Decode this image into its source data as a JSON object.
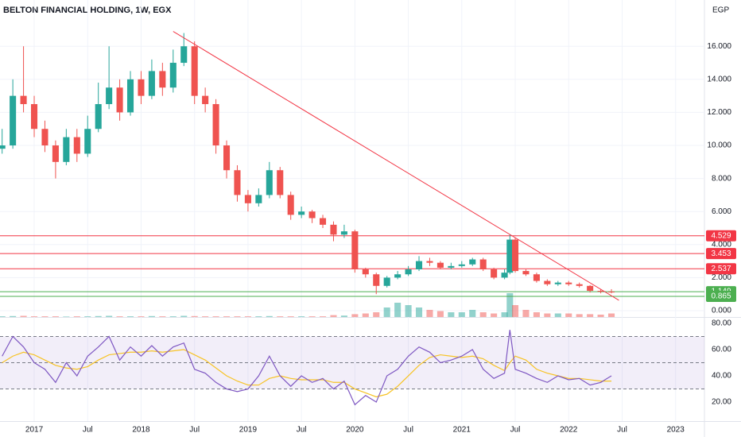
{
  "chart_data": {
    "type": "candlestick",
    "title": "BELTON FINANCIAL HOLDING, 1W, EGX",
    "y_unit": "EGP",
    "x": [
      2016.7,
      2016.8,
      2016.9,
      2017.0,
      2017.1,
      2017.2,
      2017.3,
      2017.4,
      2017.5,
      2017.6,
      2017.7,
      2017.8,
      2017.9,
      2018.0,
      2018.1,
      2018.2,
      2018.3,
      2018.4,
      2018.5,
      2018.6,
      2018.7,
      2018.8,
      2018.9,
      2019.0,
      2019.1,
      2019.2,
      2019.3,
      2019.4,
      2019.5,
      2019.6,
      2019.7,
      2019.8,
      2019.9,
      2020.0,
      2020.1,
      2020.2,
      2020.3,
      2020.4,
      2020.5,
      2020.6,
      2020.7,
      2020.8,
      2020.9,
      2021.0,
      2021.1,
      2021.2,
      2021.3,
      2021.4,
      2021.45,
      2021.5,
      2021.6,
      2021.7,
      2021.8,
      2021.9,
      2022.0,
      2022.1,
      2022.2,
      2022.3,
      2022.4
    ],
    "open": [
      9.8,
      10,
      13,
      12.5,
      11,
      10,
      9,
      10.5,
      9.5,
      11,
      12.5,
      13.5,
      12,
      14,
      13,
      14.5,
      13.5,
      15,
      16,
      13,
      12.5,
      10,
      8.5,
      7,
      6.5,
      7,
      8.5,
      7,
      5.8,
      6,
      5.6,
      5.2,
      4.6,
      4.8,
      2.5,
      2.2,
      1.5,
      2,
      2.2,
      2.5,
      3,
      2.9,
      2.6,
      2.7,
      2.8,
      3.1,
      2.5,
      2,
      2.3,
      4.3,
      2.4,
      2.2,
      1.8,
      1.6,
      1.7,
      1.6,
      1.5,
      1.2,
      1.15
    ],
    "high": [
      11,
      14,
      16,
      13,
      11.5,
      10.3,
      11,
      11,
      11.8,
      13.8,
      16,
      14,
      14.5,
      14.5,
      15.2,
      15,
      15.8,
      16.8,
      16.3,
      13.5,
      12.8,
      10.3,
      8.8,
      7.3,
      7.4,
      9,
      8.7,
      7.2,
      6.3,
      6.1,
      5.8,
      5.4,
      5.2,
      4.9,
      2.6,
      2.3,
      2.1,
      2.4,
      2.7,
      3.3,
      3.2,
      3,
      2.9,
      3,
      3.2,
      3.2,
      2.6,
      2.5,
      4.6,
      4.4,
      2.5,
      2.3,
      1.9,
      1.8,
      1.8,
      1.7,
      1.55,
      1.3,
      1.3
    ],
    "low": [
      9.5,
      9.8,
      12,
      10.5,
      9.6,
      8,
      8.8,
      9,
      9.3,
      10.8,
      12.2,
      11.5,
      11.8,
      12.5,
      12.8,
      13,
      13.2,
      14.8,
      12.5,
      12,
      9.5,
      8,
      6.6,
      6,
      6.3,
      6.8,
      6.8,
      5.5,
      5.6,
      5.3,
      5,
      4.2,
      4.4,
      2.3,
      2,
      1,
      1.4,
      1.9,
      2.1,
      2.4,
      2.7,
      2.5,
      2.5,
      2.6,
      2.7,
      2.4,
      1.9,
      1.9,
      2.2,
      2.3,
      2.1,
      1.7,
      1.5,
      1.5,
      1.5,
      1.4,
      1.1,
      1.05,
      1.05
    ],
    "close": [
      10,
      13,
      12.5,
      11,
      10,
      9,
      10.5,
      9.5,
      11,
      12.5,
      13.5,
      12,
      14,
      13,
      14.5,
      13.5,
      15,
      16,
      13,
      12.5,
      10,
      8.5,
      7,
      6.5,
      7,
      8.5,
      7,
      5.8,
      6,
      5.6,
      5.2,
      4.6,
      4.8,
      2.5,
      2.2,
      1.5,
      2,
      2.2,
      2.5,
      3,
      2.9,
      2.6,
      2.7,
      2.8,
      3.1,
      2.5,
      2,
      2.3,
      4.3,
      2.4,
      2.2,
      1.8,
      1.6,
      1.7,
      1.6,
      1.5,
      1.2,
      1.15,
      1.149
    ],
    "volume": [
      0.3,
      0.4,
      0.5,
      0.3,
      0.3,
      0.3,
      0.2,
      0.3,
      0.3,
      0.4,
      0.5,
      0.3,
      0.3,
      0.3,
      0.4,
      0.3,
      0.3,
      0.5,
      0.4,
      0.3,
      0.3,
      0.3,
      0.3,
      0.3,
      0.3,
      0.4,
      0.3,
      0.3,
      0.3,
      0.3,
      0.3,
      0.8,
      0.6,
      1.2,
      1.5,
      2,
      4,
      6,
      5,
      4,
      3,
      2.5,
      2,
      2,
      3,
      2,
      1.5,
      2,
      10,
      5,
      3,
      2,
      1.5,
      1.5,
      1.5,
      1.2,
      1.2,
      1,
      1.5
    ],
    "vlim": [
      0,
      10
    ],
    "up_color": "#26a69a",
    "down_color": "#ef5350",
    "xlim": [
      2016.68,
      2023.27
    ],
    "xticks": [
      2017,
      {
        "value": 2017.5,
        "label": "Jul"
      },
      2018,
      {
        "value": 2018.5,
        "label": "Jul"
      },
      2019,
      {
        "value": 2019.5,
        "label": "Jul"
      },
      2020,
      {
        "value": 2020.5,
        "label": "Jul"
      },
      2021,
      {
        "value": 2021.5,
        "label": "Jul"
      },
      2022,
      {
        "value": 2022.5,
        "label": "Jul"
      },
      2023
    ],
    "ylim": [
      0,
      18.8
    ],
    "yticks": [
      {
        "value": 0,
        "label": "0.000"
      },
      {
        "value": 2,
        "label": "2.000"
      },
      {
        "value": 4,
        "label": "4.000"
      },
      {
        "value": 6,
        "label": "6.000"
      },
      {
        "value": 8,
        "label": "8.000"
      },
      {
        "value": 10,
        "label": "10.000"
      },
      {
        "value": 12,
        "label": "12.000"
      },
      {
        "value": 14,
        "label": "14.000"
      },
      {
        "value": 16,
        "label": "16.000"
      }
    ],
    "levels": [
      {
        "value": 4.529,
        "color": "#f23645"
      },
      {
        "value": 3.453,
        "color": "#f23645"
      },
      {
        "value": 2.537,
        "color": "#f23645"
      },
      {
        "value": 1.149,
        "color": "#4caf50"
      },
      {
        "value": 0.865,
        "color": "#4caf50"
      }
    ],
    "trendline": {
      "x": [
        2018.3,
        2022.47
      ],
      "y": [
        16.9,
        0.63
      ],
      "color": "#f23645"
    },
    "rsi": {
      "values": [
        55,
        70,
        62,
        50,
        45,
        35,
        50,
        40,
        55,
        62,
        70,
        52,
        62,
        55,
        63,
        55,
        62,
        65,
        45,
        42,
        35,
        30,
        28,
        30,
        40,
        55,
        40,
        32,
        40,
        35,
        38,
        30,
        36,
        18,
        25,
        20,
        40,
        45,
        55,
        62,
        58,
        50,
        52,
        55,
        60,
        45,
        38,
        42,
        75,
        45,
        42,
        38,
        35,
        40,
        37,
        38,
        33,
        35,
        40
      ],
      "ma": [
        50,
        55,
        58,
        56,
        52,
        48,
        46,
        45,
        47,
        52,
        56,
        57,
        58,
        58,
        59,
        58,
        59,
        60,
        56,
        52,
        46,
        40,
        36,
        33,
        33,
        38,
        40,
        38,
        37,
        37,
        37,
        35,
        35,
        30,
        27,
        24,
        26,
        32,
        40,
        48,
        54,
        56,
        55,
        54,
        55,
        53,
        48,
        44,
        50,
        55,
        52,
        45,
        42,
        40,
        38,
        38,
        37,
        36,
        36
      ],
      "color": "#7e57c2",
      "ma_color": "#f7c325",
      "bands": [
        30,
        50,
        70
      ],
      "ylim": [
        5.5,
        84.2
      ],
      "yticks": [
        {
          "value": 20,
          "label": "20.00"
        },
        {
          "value": 40,
          "label": "40.00"
        },
        {
          "value": 60,
          "label": "60.00"
        },
        {
          "value": 80,
          "label": "80.00"
        }
      ]
    }
  }
}
